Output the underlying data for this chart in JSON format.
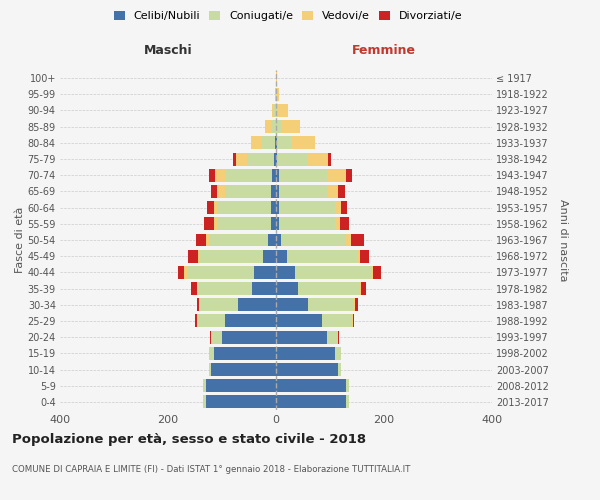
{
  "age_groups": [
    "0-4",
    "5-9",
    "10-14",
    "15-19",
    "20-24",
    "25-29",
    "30-34",
    "35-39",
    "40-44",
    "45-49",
    "50-54",
    "55-59",
    "60-64",
    "65-69",
    "70-74",
    "75-79",
    "80-84",
    "85-89",
    "90-94",
    "95-99",
    "100+"
  ],
  "birth_years": [
    "2013-2017",
    "2008-2012",
    "2003-2007",
    "1998-2002",
    "1993-1997",
    "1988-1992",
    "1983-1987",
    "1978-1982",
    "1973-1977",
    "1968-1972",
    "1963-1967",
    "1958-1962",
    "1953-1957",
    "1948-1952",
    "1943-1947",
    "1938-1942",
    "1933-1937",
    "1928-1932",
    "1923-1927",
    "1918-1922",
    "≤ 1917"
  ],
  "colors": {
    "celibi": "#4472a8",
    "coniugati": "#c8dba0",
    "vedovi": "#f5ce78",
    "divorziati": "#cc2222"
  },
  "maschi": {
    "celibi": [
      130,
      130,
      120,
      115,
      100,
      95,
      70,
      45,
      40,
      25,
      15,
      10,
      10,
      10,
      8,
      4,
      2,
      0,
      0,
      0,
      0
    ],
    "coniugati": [
      5,
      5,
      5,
      10,
      20,
      50,
      70,
      100,
      125,
      115,
      110,
      100,
      100,
      85,
      85,
      50,
      25,
      8,
      3,
      0,
      0
    ],
    "vedovi": [
      0,
      0,
      0,
      0,
      0,
      2,
      2,
      2,
      5,
      5,
      5,
      5,
      5,
      15,
      20,
      20,
      20,
      12,
      5,
      2,
      0
    ],
    "divorziati": [
      0,
      0,
      0,
      0,
      2,
      3,
      5,
      10,
      12,
      18,
      18,
      18,
      12,
      10,
      12,
      5,
      0,
      0,
      0,
      0,
      0
    ]
  },
  "femmine": {
    "celibi": [
      130,
      130,
      115,
      110,
      95,
      85,
      60,
      40,
      35,
      20,
      10,
      5,
      5,
      5,
      5,
      2,
      2,
      0,
      0,
      0,
      0
    ],
    "coniugati": [
      5,
      5,
      5,
      10,
      20,
      55,
      85,
      115,
      140,
      130,
      120,
      105,
      105,
      90,
      90,
      55,
      25,
      10,
      3,
      0,
      0
    ],
    "vedovi": [
      0,
      0,
      0,
      0,
      0,
      2,
      2,
      2,
      5,
      5,
      8,
      8,
      10,
      20,
      35,
      40,
      45,
      35,
      20,
      5,
      2
    ],
    "divorziati": [
      0,
      0,
      0,
      0,
      2,
      3,
      5,
      10,
      15,
      18,
      25,
      18,
      12,
      12,
      10,
      5,
      0,
      0,
      0,
      0,
      0
    ]
  },
  "title": "Popolazione per età, sesso e stato civile - 2018",
  "subtitle": "COMUNE DI CAPRAIA E LIMITE (FI) - Dati ISTAT 1° gennaio 2018 - Elaborazione TUTTITALIA.IT",
  "ylabel_left": "Fasce di età",
  "ylabel_right": "Anni di nascita",
  "xlabel_left": "Maschi",
  "xlabel_right": "Femmine",
  "xlim": 400,
  "background": "#f5f5f5",
  "grid_color": "#cccccc"
}
